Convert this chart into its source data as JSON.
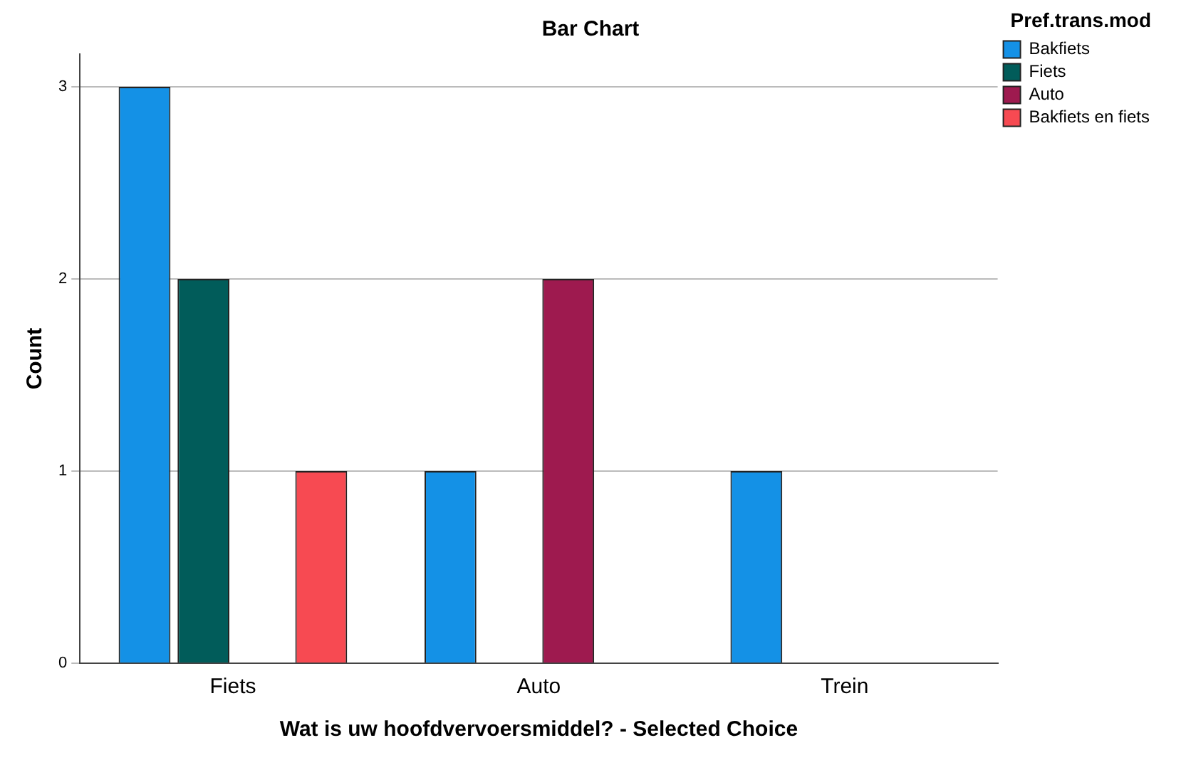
{
  "chart_data": {
    "type": "bar",
    "title": "Bar Chart",
    "xlabel": "Wat is uw hoofdvervoersmiddel? - Selected Choice",
    "ylabel": "Count",
    "legend_title": "Pref.trans.mod",
    "categories": [
      "Fiets",
      "Auto",
      "Trein"
    ],
    "series": [
      {
        "name": "Bakfiets",
        "color": "#1491e6",
        "values": [
          3,
          1,
          1
        ]
      },
      {
        "name": "Fiets",
        "color": "#015c5a",
        "values": [
          2,
          null,
          null
        ]
      },
      {
        "name": "Auto",
        "color": "#9e1a4f",
        "values": [
          null,
          2,
          null
        ]
      },
      {
        "name": "Bakfiets en fiets",
        "color": "#f74a52",
        "values": [
          1,
          null,
          null
        ]
      }
    ],
    "ylim": [
      0,
      3.17
    ],
    "yticks": [
      0,
      1,
      2,
      3
    ],
    "grid": "y",
    "legend": "top right"
  }
}
